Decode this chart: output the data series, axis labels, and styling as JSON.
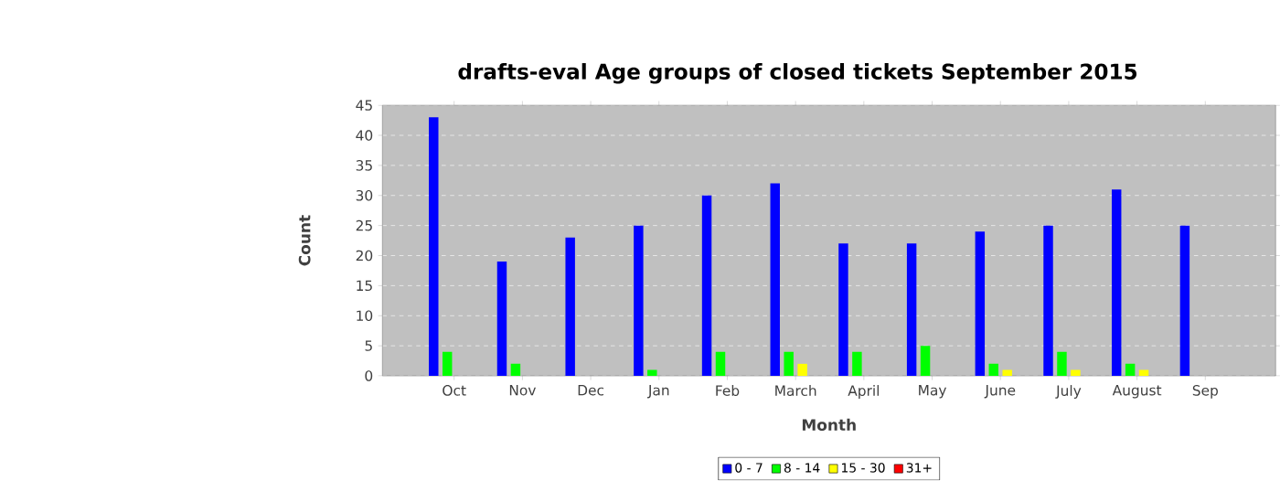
{
  "chart_data": {
    "type": "bar",
    "title": "drafts-eval Age groups of closed tickets September 2015",
    "xlabel": "Month",
    "ylabel": "Count",
    "categories": [
      "Oct",
      "Nov",
      "Dec",
      "Jan",
      "Feb",
      "March",
      "April",
      "May",
      "June",
      "July",
      "August",
      "Sep"
    ],
    "series": [
      {
        "name": "0 - 7",
        "color": "#0000ff",
        "values": [
          43,
          19,
          23,
          25,
          30,
          32,
          22,
          22,
          24,
          25,
          31,
          25
        ]
      },
      {
        "name": "8 - 14",
        "color": "#00ff00",
        "values": [
          4,
          2,
          0,
          1,
          4,
          4,
          4,
          5,
          2,
          4,
          2,
          0
        ]
      },
      {
        "name": "15 - 30",
        "color": "#ffff00",
        "values": [
          0,
          0,
          0,
          0,
          0,
          2,
          0,
          0,
          1,
          1,
          1,
          0
        ]
      },
      {
        "name": "31+",
        "color": "#ff0000",
        "values": [
          0,
          0,
          0,
          0,
          0,
          0,
          0,
          0,
          0,
          0,
          0,
          0
        ]
      }
    ],
    "ylim": [
      0,
      45
    ],
    "yticks": [
      0,
      5,
      10,
      15,
      20,
      25,
      30,
      35,
      40,
      45
    ],
    "grid": "y",
    "legend": "bottom"
  }
}
